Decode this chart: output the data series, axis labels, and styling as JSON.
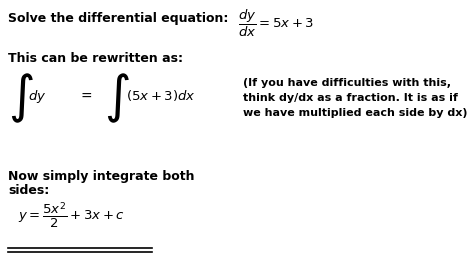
{
  "bg_color": "#ffffff",
  "text_color": "#000000",
  "figsize": [
    4.74,
    2.69
  ],
  "dpi": 100,
  "line1_text": "Solve the differential equation:",
  "line1_eq": "$\\dfrac{dy}{dx} = 5x + 3$",
  "line2": "This can be rewritten as:",
  "note_line1": "(If you have difficulties with this,",
  "note_line2": "think dy/dx as a fraction. It is as if",
  "note_line3": "we have multiplied each side by dx)",
  "line3a": "Now simply integrate both",
  "line3b": "sides:",
  "result": "$y = \\dfrac{5x^2}{2} + 3x + c$"
}
